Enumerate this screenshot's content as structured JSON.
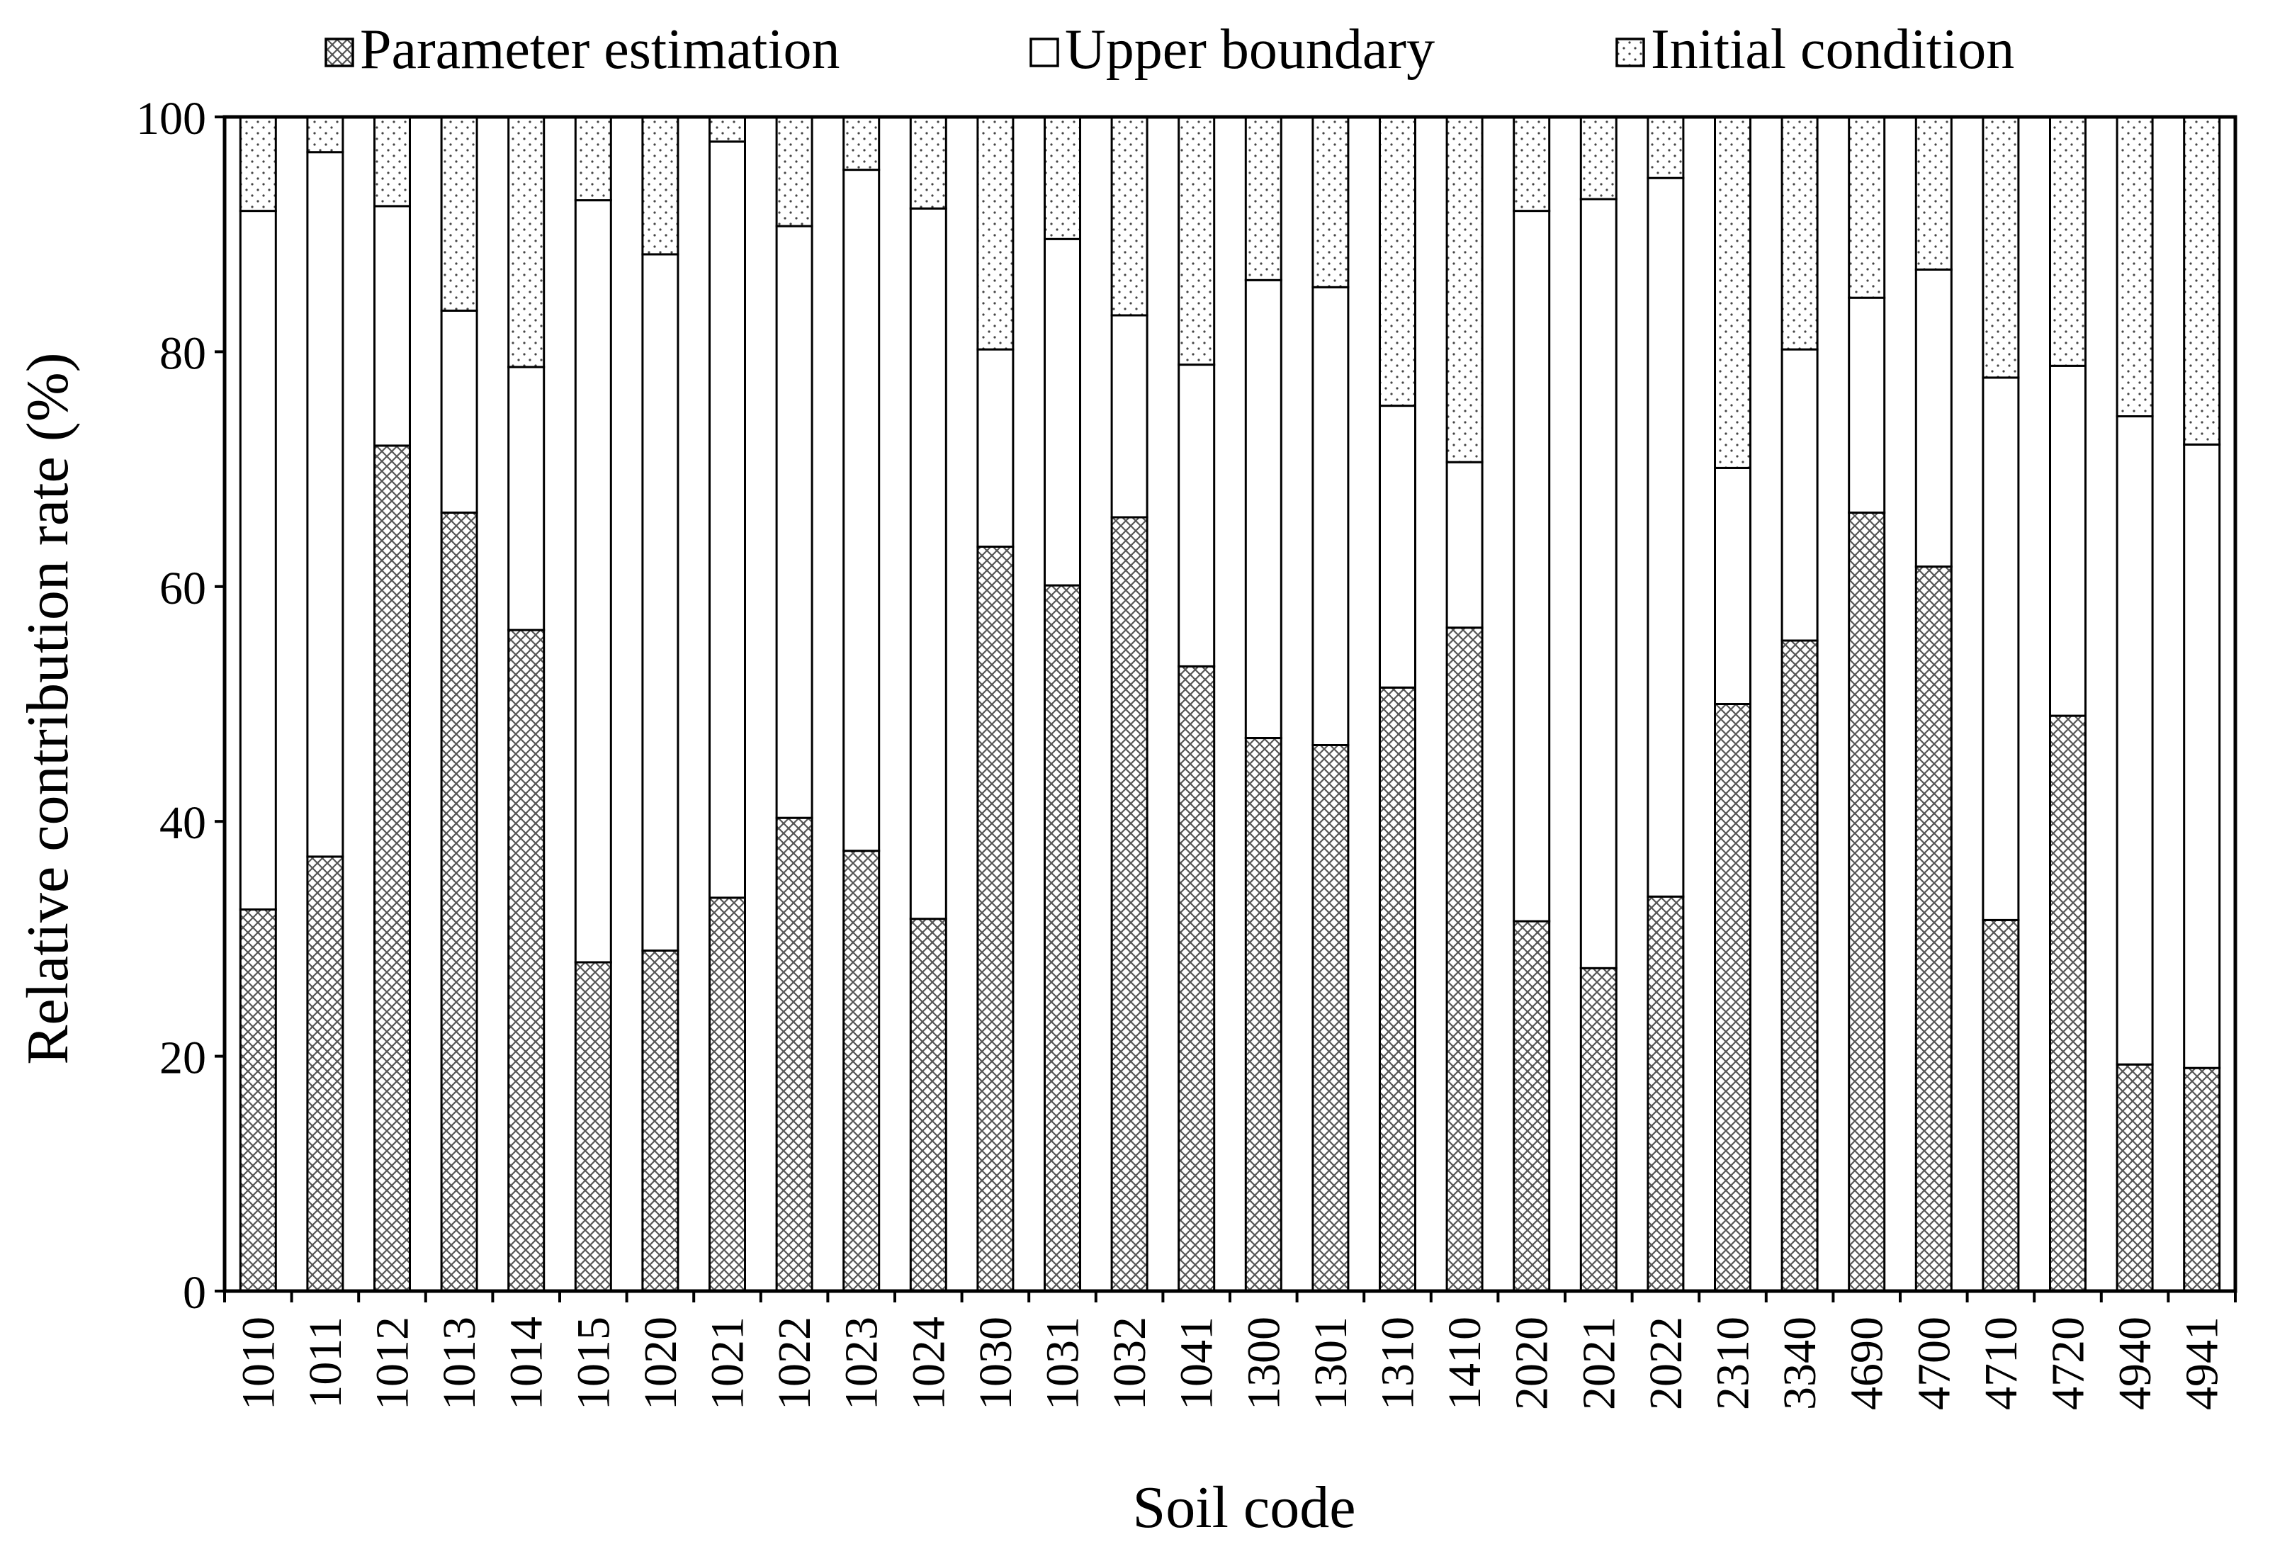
{
  "chart_data": {
    "type": "bar",
    "stacked": true,
    "title": "",
    "xlabel": "Soil code",
    "ylabel": "Relative contribution rate (%)",
    "ylim": [
      0,
      100
    ],
    "yticks": [
      "0",
      "20",
      "40",
      "60",
      "80",
      "100"
    ],
    "grid": false,
    "legend_position": "top",
    "categories": [
      "1010",
      "1011",
      "1012",
      "1013",
      "1014",
      "1015",
      "1020",
      "1021",
      "1022",
      "1023",
      "1024",
      "1030",
      "1031",
      "1032",
      "1041",
      "1300",
      "1301",
      "1310",
      "1410",
      "2020",
      "2021",
      "2022",
      "2310",
      "3340",
      "4690",
      "4700",
      "4710",
      "4720",
      "4940",
      "4941"
    ],
    "series": [
      {
        "name": "Parameter estimation",
        "pattern": "crosshatch",
        "values": [
          32.5,
          37,
          72,
          66.3,
          56.3,
          28,
          29,
          33.5,
          40.3,
          37.5,
          31.7,
          63.4,
          60.1,
          65.9,
          53.2,
          47.1,
          46.5,
          51.4,
          56.5,
          31.5,
          27.5,
          33.6,
          50,
          55.4,
          66.3,
          61.7,
          31.6,
          49,
          19.3,
          19
        ]
      },
      {
        "name": "Upper boundary",
        "pattern": "blank",
        "values": [
          59.5,
          60,
          20.4,
          17.2,
          22.4,
          64.9,
          59.3,
          64.4,
          50.4,
          58,
          60.5,
          16.8,
          29.5,
          17.2,
          25.7,
          39,
          39,
          24,
          14.1,
          60.5,
          65.5,
          61.2,
          20.1,
          24.8,
          18.3,
          25.3,
          46.2,
          29.8,
          55.2,
          53.1
        ]
      },
      {
        "name": "Initial condition",
        "pattern": "dotted",
        "values": [
          8,
          3,
          7.6,
          16.5,
          21.3,
          7.1,
          11.7,
          2.1,
          9.3,
          4.5,
          7.8,
          19.8,
          10.4,
          16.9,
          21.1,
          13.9,
          14.5,
          24.6,
          29.4,
          8,
          7,
          5.2,
          29.9,
          19.8,
          15.4,
          13,
          22.2,
          21.2,
          25.5,
          27.9
        ]
      }
    ]
  }
}
